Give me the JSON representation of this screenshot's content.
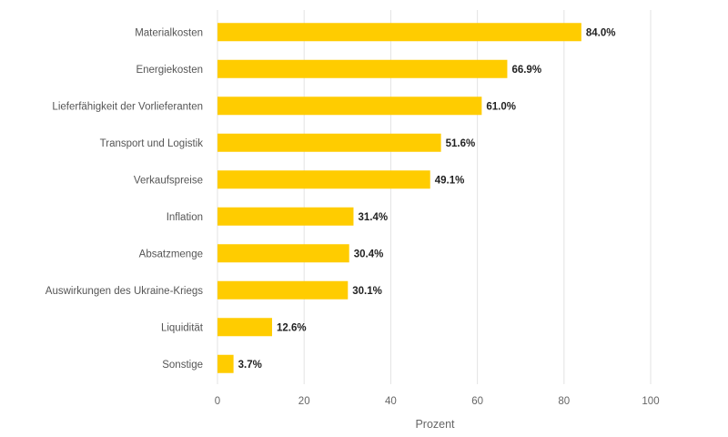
{
  "chart_data": {
    "type": "bar",
    "orientation": "horizontal",
    "categories": [
      "Materialkosten",
      "Energiekosten",
      "Lieferfähigkeit der Vorlieferanten",
      "Transport und Logistik",
      "Verkaufspreise",
      "Inflation",
      "Absatzmenge",
      "Auswirkungen des Ukraine-Kriegs",
      "Liquidität",
      "Sonstige"
    ],
    "values": [
      84.0,
      66.9,
      61.0,
      51.6,
      49.1,
      31.4,
      30.4,
      30.1,
      12.6,
      3.7
    ],
    "value_labels": [
      "84.0%",
      "66.9%",
      "61.0%",
      "51.6%",
      "49.1%",
      "31.4%",
      "30.4%",
      "30.1%",
      "12.6%",
      "3.7%"
    ],
    "xlabel": "Prozent",
    "xlim": [
      0,
      100
    ],
    "xticks": [
      "0",
      "20",
      "40",
      "60",
      "80",
      "100"
    ],
    "grid": true,
    "bar_color": "#ffcc00"
  }
}
